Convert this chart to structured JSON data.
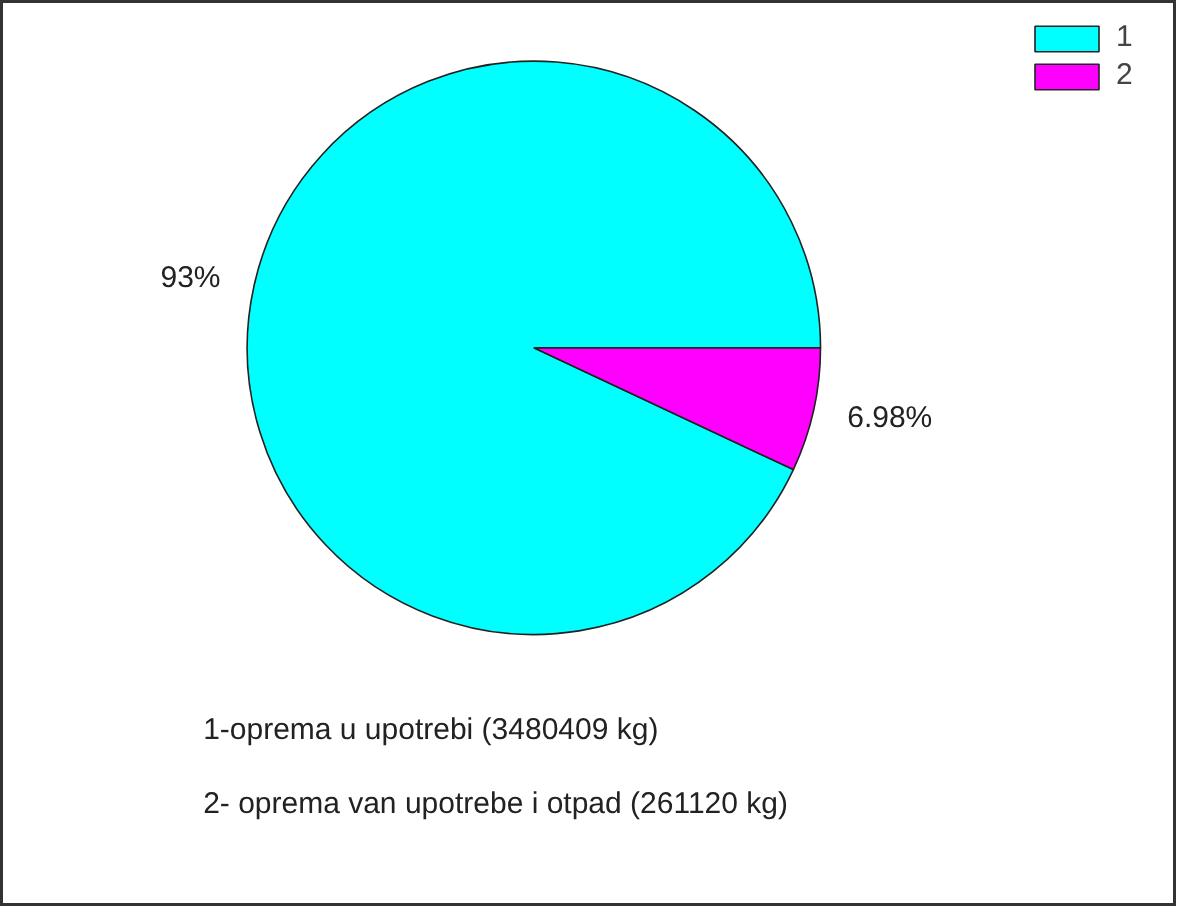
{
  "chart_data": {
    "type": "pie",
    "categories": [
      "1",
      "2"
    ],
    "values": [
      93,
      6.98
    ],
    "value_labels": [
      "93%",
      "6.98%"
    ],
    "colors": [
      "#00ffff",
      "#ff00ff"
    ],
    "legend": "top right",
    "annotations": [
      "1-oprema u upotrebi (3480409 kg)",
      "2- oprema van upotrebe i otpad (261120 kg)"
    ]
  }
}
